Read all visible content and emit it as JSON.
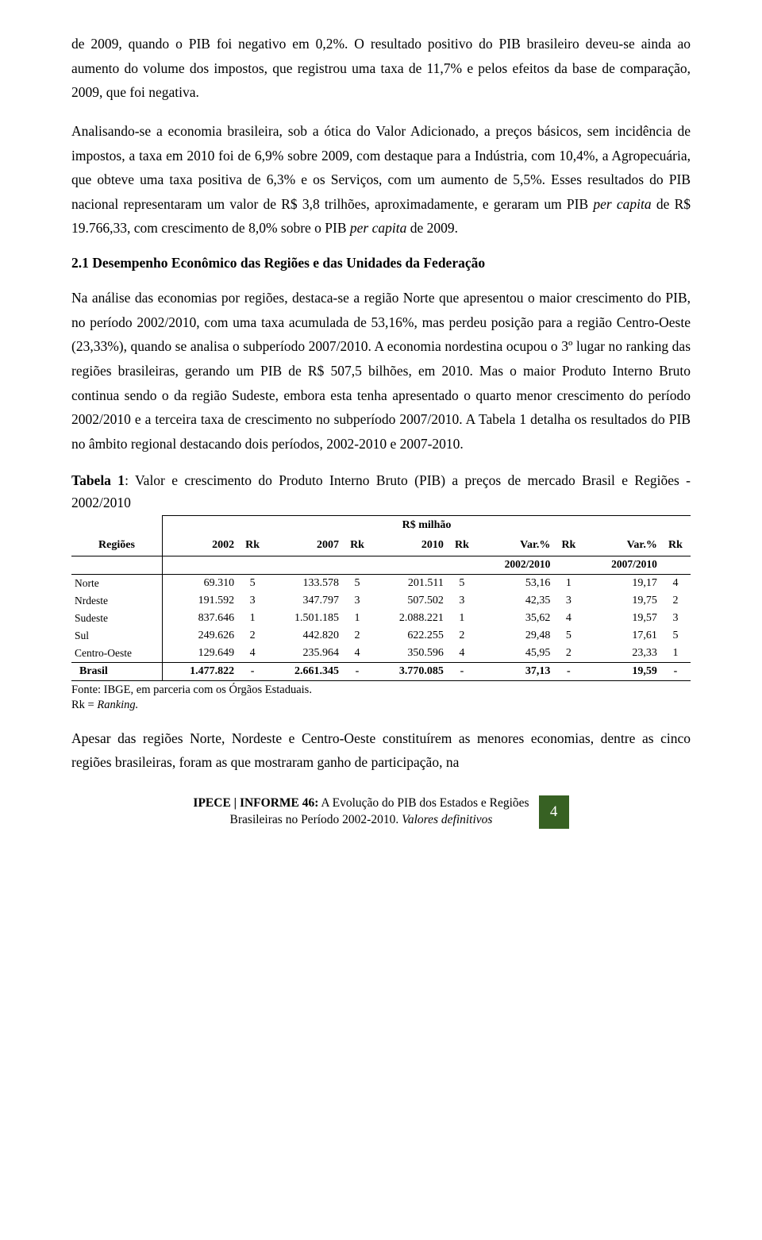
{
  "paragraphs": {
    "p1": "de 2009, quando o PIB foi negativo em 0,2%. O resultado positivo do PIB brasileiro deveu-se ainda ao aumento do volume dos impostos, que registrou uma taxa de 11,7% e pelos efeitos da base de comparação, 2009, que foi negativa.",
    "p2_a": "Analisando-se a economia brasileira, sob a ótica do Valor Adicionado, a preços básicos, sem incidência de impostos, a taxa em 2010 foi de 6,9% sobre 2009, com destaque para a Indústria, com 10,4%, a Agropecuária, que obteve uma taxa positiva de 6,3% e os Serviços, com um aumento de 5,5%. Esses resultados do PIB nacional representaram um valor de R$ 3,8 trilhões, aproximadamente, e geraram um PIB ",
    "p2_b": "per capita",
    "p2_c": " de R$ 19.766,33, com crescimento de 8,0% sobre o PIB ",
    "p2_d": "per capita",
    "p2_e": " de 2009.",
    "p3": "Na análise das economias por regiões, destaca-se a região Norte que apresentou o maior crescimento do PIB, no período 2002/2010, com uma taxa acumulada de 53,16%, mas perdeu posição para a região Centro-Oeste (23,33%), quando se analisa o subperíodo 2007/2010. A economia nordestina ocupou o 3º lugar no ranking das regiões brasileiras, gerando um PIB de R$ 507,5 bilhões, em 2010. Mas o maior Produto Interno Bruto continua sendo o da região Sudeste, embora esta tenha apresentado o quarto menor crescimento do período 2002/2010 e a terceira taxa de crescimento no subperíodo 2007/2010. A Tabela 1 detalha os resultados do PIB no âmbito regional destacando dois períodos, 2002-2010 e 2007-2010.",
    "p4": "Apesar das regiões Norte, Nordeste e Centro-Oeste constituírem as menores economias, dentre as cinco regiões brasileiras, foram as que mostraram ganho de participação, na"
  },
  "heading": "2.1 Desempenho Econômico das Regiões e das Unidades da Federação",
  "table": {
    "title_a": "Tabela 1",
    "title_b": ": Valor e crescimento do Produto Interno Bruto (PIB) a preços de mercado Brasil e Regiões - 2002/2010",
    "unit_label": "R$ milhão",
    "columns": {
      "regioes": "Regiões",
      "y2002": "2002",
      "rk1": "Rk",
      "y2007": "2007",
      "rk2": "Rk",
      "y2010": "2010",
      "rk3": "Rk",
      "var1": "Var.%",
      "rk4": "Rk",
      "var2": "Var.%",
      "rk5": "Rk",
      "sub1": "2002/2010",
      "sub2": "2007/2010"
    },
    "rows": [
      {
        "name": "Norte",
        "v2002": "69.310",
        "rk1": "5",
        "v2007": "133.578",
        "rk2": "5",
        "v2010": "201.511",
        "rk3": "5",
        "var1": "53,16",
        "rk4": "1",
        "var2": "19,17",
        "rk5": "4"
      },
      {
        "name": "Nrdeste",
        "v2002": "191.592",
        "rk1": "3",
        "v2007": "347.797",
        "rk2": "3",
        "v2010": "507.502",
        "rk3": "3",
        "var1": "42,35",
        "rk4": "3",
        "var2": "19,75",
        "rk5": "2"
      },
      {
        "name": "Sudeste",
        "v2002": "837.646",
        "rk1": "1",
        "v2007": "1.501.185",
        "rk2": "1",
        "v2010": "2.088.221",
        "rk3": "1",
        "var1": "35,62",
        "rk4": "4",
        "var2": "19,57",
        "rk5": "3"
      },
      {
        "name": "Sul",
        "v2002": "249.626",
        "rk1": "2",
        "v2007": "442.820",
        "rk2": "2",
        "v2010": "622.255",
        "rk3": "2",
        "var1": "29,48",
        "rk4": "5",
        "var2": "17,61",
        "rk5": "5"
      },
      {
        "name": "Centro-Oeste",
        "v2002": "129.649",
        "rk1": "4",
        "v2007": "235.964",
        "rk2": "4",
        "v2010": "350.596",
        "rk3": "4",
        "var1": "45,95",
        "rk4": "2",
        "var2": "23,33",
        "rk5": "1"
      }
    ],
    "total": {
      "name": "Brasil",
      "v2002": "1.477.822",
      "rk1": "-",
      "v2007": "2.661.345",
      "rk2": "-",
      "v2010": "3.770.085",
      "rk3": "-",
      "var1": "37,13",
      "rk4": "-",
      "var2": "19,59",
      "rk5": "-"
    },
    "note_a": "Fonte: IBGE, em parceria com os Órgãos Estaduais.",
    "note_b1": "Rk = ",
    "note_b2": "Ranking.",
    "note_b3": ""
  },
  "footer": {
    "line1_a": "IPECE | INFORME 46:",
    "line1_b": " A Evolução do PIB dos Estados e Regiões",
    "line2_a": "Brasileiras no Período 2002-2010. ",
    "line2_b": "Valores definitivos",
    "page": "4",
    "page_bg": "#376123",
    "page_fg": "#ffffff"
  }
}
